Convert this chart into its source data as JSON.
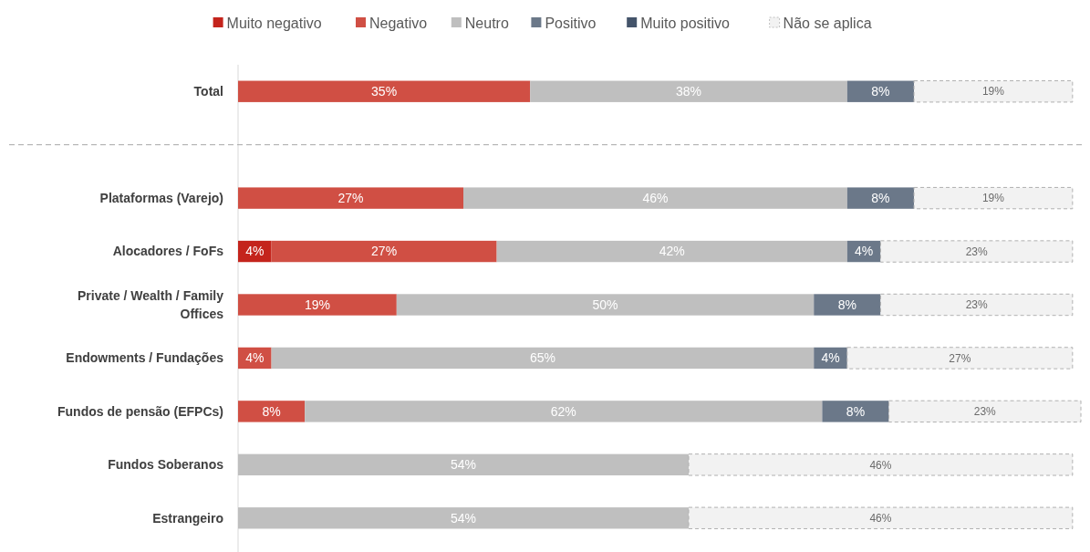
{
  "chart_data": {
    "type": "bar",
    "orientation": "horizontal",
    "stacked": true,
    "legend": "top",
    "tick_labels": "y",
    "xlim": [
      0,
      101
    ],
    "categories": [
      "Total",
      null,
      "Plataformas (Varejo)",
      "Alocadores / FoFs",
      "Private / Wealth / Family Offices",
      "Endowments / Fundações",
      "Fundos de pensão (EFPCs)",
      "Fundos Soberanos",
      "Estrangeiro"
    ],
    "series": [
      {
        "name": "Muito negativo",
        "color": "#c4241c",
        "values": [
          null,
          null,
          null,
          4,
          null,
          null,
          null,
          null,
          null
        ],
        "value_labels": [
          null,
          null,
          null,
          "4%",
          null,
          null,
          null,
          null,
          null
        ]
      },
      {
        "name": "Negativo",
        "color": "#d04f44",
        "values": [
          35,
          null,
          27,
          27,
          19,
          4,
          8,
          null,
          null
        ],
        "value_labels": [
          "35%",
          null,
          "27%",
          "27%",
          "19%",
          "4%",
          "8%",
          null,
          null
        ]
      },
      {
        "name": "Neutro",
        "color": "#bfbfbf",
        "values": [
          38,
          null,
          46,
          42,
          50,
          65,
          62,
          54,
          54
        ],
        "value_labels": [
          "38%",
          null,
          "46%",
          "42%",
          "50%",
          "65%",
          "62%",
          "54%",
          "54%"
        ]
      },
      {
        "name": "Positivo",
        "color": "#6b7889",
        "values": [
          8,
          null,
          8,
          4,
          8,
          4,
          8,
          null,
          null
        ],
        "value_labels": [
          "8%",
          null,
          "8%",
          "4%",
          "8%",
          "4%",
          "8%",
          null,
          null
        ]
      },
      {
        "name": "Muito positivo",
        "color": "#44546a",
        "values": [
          null,
          null,
          null,
          null,
          null,
          null,
          null,
          null,
          null
        ]
      },
      {
        "name": "Não se aplica",
        "color": "#f2f2f2",
        "line_style": "dashed",
        "values": [
          19,
          null,
          19,
          23,
          23,
          27,
          23,
          46,
          46
        ],
        "value_labels": [
          "19%",
          null,
          "19%",
          "23%",
          "23%",
          "27%",
          "23%",
          "46%",
          "46%"
        ]
      }
    ]
  }
}
